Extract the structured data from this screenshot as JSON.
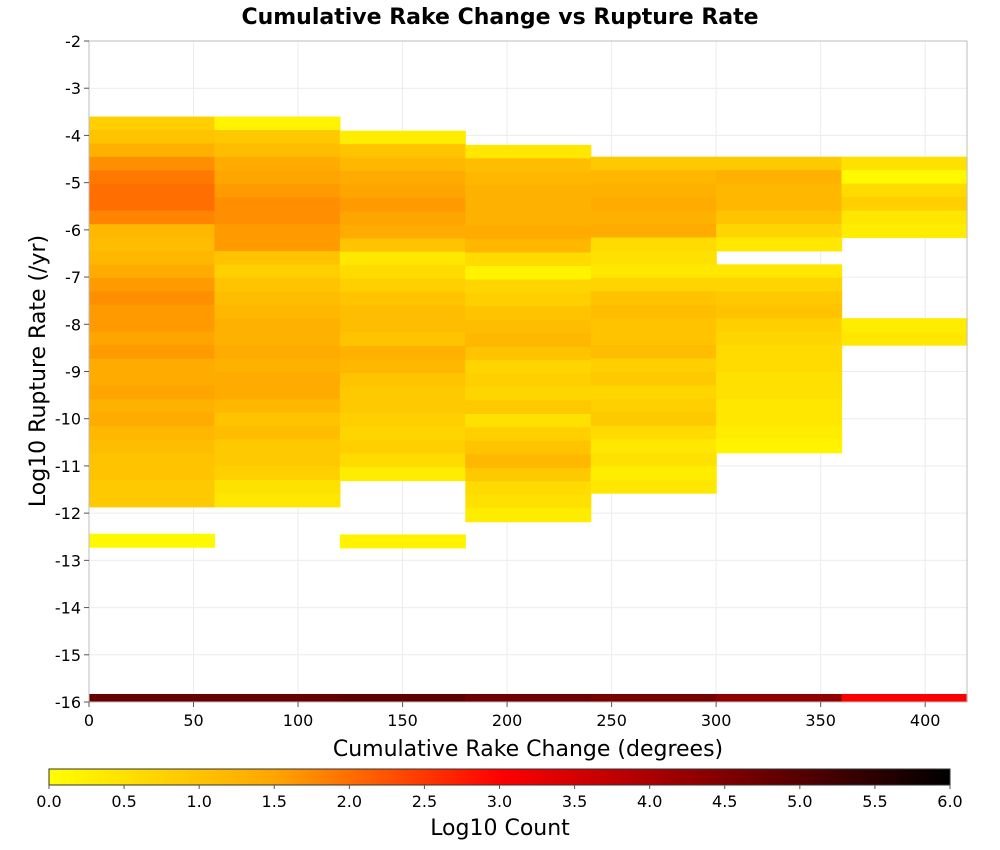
{
  "chart_data": {
    "type": "heatmap",
    "title": "Cumulative Rake Change vs Rupture Rate",
    "xlabel": "Cumulative Rake Change (degrees)",
    "ylabel": "Log10 Rupture Rate (/yr)",
    "xlim": [
      0,
      420
    ],
    "ylim": [
      -16,
      -2
    ],
    "x_ticks": [
      "0",
      "50",
      "100",
      "150",
      "200",
      "250",
      "300",
      "350",
      "400"
    ],
    "y_ticks": [
      "-2",
      "-3",
      "-4",
      "-5",
      "-6",
      "-7",
      "-8",
      "-9",
      "-10",
      "-11",
      "-12",
      "-13",
      "-14",
      "-15",
      "-16"
    ],
    "grid": true,
    "colorbar": {
      "label": "Log10 Count",
      "range": [
        0,
        6
      ],
      "ticks": [
        "0.0",
        "0.5",
        "1.0",
        "1.5",
        "2.0",
        "2.5",
        "3.0",
        "3.5",
        "4.0",
        "4.5",
        "5.0",
        "5.5",
        "6.0"
      ],
      "colors": [
        "#ffff00",
        "#ffa500",
        "#ff0000",
        "#800000",
        "#000000"
      ]
    },
    "x_bins": [
      0,
      60,
      120,
      180,
      240,
      300,
      360,
      420
    ],
    "y_bin_size": 0.285,
    "columns": [
      {
        "y_top": -3.6,
        "values": [
          0.8,
          1.0,
          1.3,
          1.7,
          1.9,
          2.0,
          2.0,
          1.8,
          1.2,
          1.1,
          1.2,
          1.4,
          1.6,
          1.7,
          1.6,
          1.6,
          1.5,
          1.6,
          1.4,
          1.4,
          1.5,
          1.3,
          1.4,
          1.2,
          1.1,
          1.0,
          1.0,
          0.9,
          0.9,
          -1,
          -1,
          0.1
        ]
      },
      {
        "y_top": -3.6,
        "values": [
          0.2,
          0.9,
          1.1,
          1.4,
          1.5,
          1.6,
          1.7,
          1.7,
          1.6,
          1.6,
          1.0,
          0.8,
          1.0,
          1.1,
          1.2,
          1.3,
          1.3,
          1.4,
          1.3,
          1.4,
          1.4,
          1.2,
          1.0,
          1.1,
          0.9,
          0.9,
          0.8,
          0.5,
          0.4
        ]
      },
      {
        "y_top": -3.9,
        "values": [
          0.3,
          1.0,
          1.2,
          1.4,
          1.5,
          1.6,
          1.5,
          1.4,
          1.0,
          0.4,
          0.6,
          0.8,
          1.0,
          1.1,
          1.1,
          1.0,
          1.3,
          1.2,
          1.0,
          0.9,
          0.9,
          0.8,
          0.7,
          0.8,
          0.6,
          0.3,
          -1,
          -1,
          -1,
          -1,
          0.2
        ]
      },
      {
        "y_top": -4.2,
        "values": [
          0.4,
          1.1,
          1.2,
          1.3,
          1.3,
          1.3,
          1.4,
          1.2,
          0.6,
          0.2,
          0.7,
          0.8,
          1.0,
          1.1,
          1.2,
          1.0,
          0.7,
          0.8,
          0.7,
          0.9,
          0.5,
          0.8,
          1.0,
          1.2,
          0.9,
          0.6,
          0.5,
          0.3
        ]
      },
      {
        "y_top": -4.45,
        "values": [
          0.9,
          1.2,
          1.3,
          1.4,
          1.3,
          1.4,
          0.6,
          0.5,
          0.4,
          0.7,
          1.0,
          1.1,
          1.0,
          1.0,
          1.1,
          0.8,
          0.9,
          0.7,
          0.8,
          0.9,
          0.6,
          0.4,
          0.5,
          0.3,
          0.4
        ]
      },
      {
        "y_top": -4.45,
        "values": [
          0.9,
          1.3,
          1.2,
          1.2,
          1.0,
          0.7,
          0.4,
          -1,
          0.4,
          0.7,
          0.9,
          1.0,
          0.8,
          0.7,
          0.6,
          0.6,
          0.5,
          0.5,
          0.4,
          0.4,
          0.3,
          0.2
        ]
      },
      {
        "y_top": -4.45,
        "values": [
          0.5,
          0.1,
          0.6,
          0.8,
          0.4,
          0.3,
          -1,
          -1,
          -1,
          -1,
          -1,
          -1,
          0.3,
          0.4
        ]
      }
    ],
    "bottom_row": {
      "y": -16,
      "values": [
        4.8,
        4.8,
        4.9,
        4.7,
        4.6,
        4.3,
        3.0
      ]
    }
  }
}
